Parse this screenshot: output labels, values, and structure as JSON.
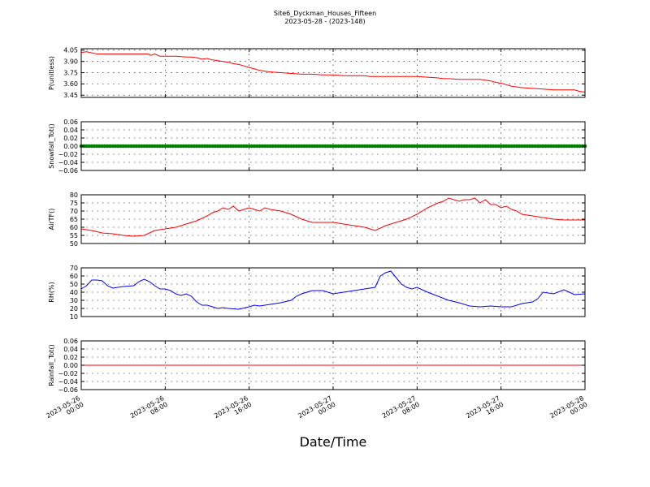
{
  "figure": {
    "title": "Site6_Dyckman_Houses_Fifteen",
    "subtitle": "2023-05-28 - (2023-148)",
    "xlabel": "Date/Time",
    "x_ticks": [
      [
        "2023-05-26",
        "00:00"
      ],
      [
        "2023-05-26",
        "08:00"
      ],
      [
        "2023-05-26",
        "16:00"
      ],
      [
        "2023-05-27",
        "00:00"
      ],
      [
        "2023-05-27",
        "08:00"
      ],
      [
        "2023-05-27",
        "16:00"
      ],
      [
        "2023-05-28",
        "00:00"
      ]
    ]
  },
  "chart_data": [
    {
      "type": "line",
      "ylabel": "P(unitless)",
      "color": "#ff0000",
      "ylim": [
        3.42,
        4.07
      ],
      "yticks": [
        3.45,
        3.6,
        3.75,
        3.9,
        4.05
      ],
      "ytick_labels": [
        "3.45",
        "3.60",
        "3.75",
        "3.90",
        "4.05"
      ],
      "xlim": [
        0,
        48
      ],
      "grid": true,
      "x": [
        0,
        0.5,
        1.5,
        3,
        5,
        6.4,
        6.6,
        7,
        7.5,
        8,
        9,
        10,
        10.5,
        11,
        11.5,
        12,
        12.5,
        13,
        13.5,
        14,
        14.5,
        15,
        15.5,
        16,
        16.5,
        17,
        17.5,
        18,
        19,
        20,
        21,
        22,
        23,
        24,
        25,
        26,
        27,
        27.5,
        28,
        29,
        30,
        31,
        32,
        33,
        34,
        34.5,
        35,
        36,
        37,
        38,
        38.5,
        39,
        39.5,
        40,
        40.5,
        41,
        41.5,
        42,
        43,
        44,
        45,
        46,
        47,
        47.5,
        48
      ],
      "y": [
        4.02,
        4.03,
        4.0,
        4.0,
        4.0,
        4.0,
        3.98,
        4.0,
        3.97,
        3.97,
        3.97,
        3.96,
        3.96,
        3.95,
        3.93,
        3.94,
        3.92,
        3.91,
        3.9,
        3.89,
        3.87,
        3.86,
        3.84,
        3.82,
        3.8,
        3.78,
        3.77,
        3.76,
        3.75,
        3.74,
        3.73,
        3.73,
        3.72,
        3.72,
        3.71,
        3.71,
        3.71,
        3.7,
        3.7,
        3.7,
        3.7,
        3.7,
        3.7,
        3.69,
        3.68,
        3.67,
        3.67,
        3.66,
        3.66,
        3.66,
        3.65,
        3.64,
        3.62,
        3.61,
        3.59,
        3.57,
        3.56,
        3.55,
        3.54,
        3.53,
        3.52,
        3.52,
        3.52,
        3.5,
        3.49
      ]
    },
    {
      "type": "scatter",
      "ylabel": "Snowfall_Tot()",
      "color": "#008000",
      "ylim": [
        -0.06,
        0.06
      ],
      "yticks": [
        -0.06,
        -0.04,
        -0.02,
        0.0,
        0.02,
        0.04,
        0.06
      ],
      "ytick_labels": [
        "−0.06",
        "−0.04",
        "−0.02",
        "0.00",
        "0.02",
        "0.04",
        "0.06"
      ],
      "xlim": [
        0,
        48
      ],
      "grid": true,
      "constant_value": 0.0
    },
    {
      "type": "line",
      "ylabel": "AirTF()",
      "color": "#ff0000",
      "ylim": [
        50,
        80
      ],
      "yticks": [
        50,
        55,
        60,
        65,
        70,
        75,
        80
      ],
      "ytick_labels": [
        "50",
        "55",
        "60",
        "65",
        "70",
        "75",
        "80"
      ],
      "xlim": [
        0,
        48
      ],
      "grid": true,
      "x": [
        0,
        1,
        2,
        3,
        4,
        5,
        6,
        7,
        8,
        9,
        10,
        11,
        12,
        12.5,
        13,
        13.5,
        14,
        14.5,
        15,
        15.5,
        16,
        16.5,
        17,
        17.5,
        18,
        19,
        20,
        21,
        22,
        23,
        24,
        25,
        26,
        27,
        28,
        29,
        29.5,
        30,
        31,
        32,
        33,
        34,
        34.5,
        35,
        35.5,
        36,
        36.5,
        37,
        37.5,
        38,
        38.5,
        39,
        39.5,
        40,
        40.5,
        41,
        41.5,
        42,
        43,
        44,
        45,
        46,
        47,
        48
      ],
      "y": [
        59,
        58,
        56.5,
        56,
        55,
        54.5,
        55,
        58,
        59,
        60,
        62,
        64,
        67,
        69,
        70,
        72,
        71,
        73,
        70,
        71,
        72,
        71,
        70,
        72,
        71,
        70,
        68,
        65,
        63,
        63,
        63,
        62,
        61,
        60,
        58,
        61,
        62,
        63,
        65,
        68,
        72,
        75,
        76,
        78,
        77,
        76,
        77,
        77,
        78,
        75,
        77,
        74,
        74,
        72,
        73,
        71,
        70,
        68,
        67,
        66,
        65,
        64.5,
        64.5,
        64.5
      ]
    },
    {
      "type": "line",
      "ylabel": "RH(%)",
      "color": "#0000ff",
      "ylim": [
        10,
        70
      ],
      "yticks": [
        10,
        20,
        30,
        40,
        50,
        60,
        70
      ],
      "ytick_labels": [
        "10",
        "20",
        "30",
        "40",
        "50",
        "60",
        "70"
      ],
      "xlim": [
        0,
        48
      ],
      "grid": true,
      "x": [
        0,
        0.5,
        1,
        1.5,
        2,
        2.5,
        3,
        3.5,
        4,
        5,
        5.5,
        6,
        6.5,
        7,
        7.5,
        8,
        8.5,
        9,
        9.5,
        10,
        10.5,
        11,
        11.5,
        12,
        12.5,
        13,
        13.5,
        14,
        15,
        16,
        16.5,
        17,
        18,
        19,
        20,
        20.5,
        21,
        22,
        23,
        24,
        25,
        26,
        27,
        28,
        28.5,
        29,
        29.5,
        30,
        30.5,
        31,
        31.5,
        32,
        33,
        34,
        35,
        36,
        37,
        38,
        39,
        40,
        41,
        42,
        42.5,
        43,
        43.5,
        44,
        45,
        46,
        47,
        48
      ],
      "y": [
        44,
        48,
        55,
        55,
        54,
        48,
        45,
        46,
        47,
        48,
        53,
        56,
        53,
        48,
        44,
        44,
        42,
        38,
        36,
        38,
        35,
        28,
        24,
        24,
        22,
        20,
        21,
        20,
        19,
        22,
        24,
        23,
        25,
        27,
        30,
        35,
        38,
        42,
        42,
        38,
        40,
        42,
        44,
        46,
        60,
        64,
        66,
        58,
        50,
        46,
        44,
        46,
        40,
        35,
        30,
        27,
        23,
        22,
        23,
        22,
        22,
        26,
        27,
        28,
        32,
        40,
        38,
        43,
        37,
        38
      ]
    },
    {
      "type": "line",
      "ylabel": "Rainfall_Tot()",
      "color": "#ff0000",
      "ylim": [
        -0.06,
        0.06
      ],
      "yticks": [
        -0.06,
        -0.04,
        -0.02,
        0.0,
        0.02,
        0.04,
        0.06
      ],
      "ytick_labels": [
        "−0.06",
        "−0.04",
        "−0.02",
        "0.00",
        "0.02",
        "0.04",
        "0.06"
      ],
      "xlim": [
        0,
        48
      ],
      "grid": true,
      "x": [
        0,
        48
      ],
      "y": [
        0,
        0
      ]
    }
  ]
}
